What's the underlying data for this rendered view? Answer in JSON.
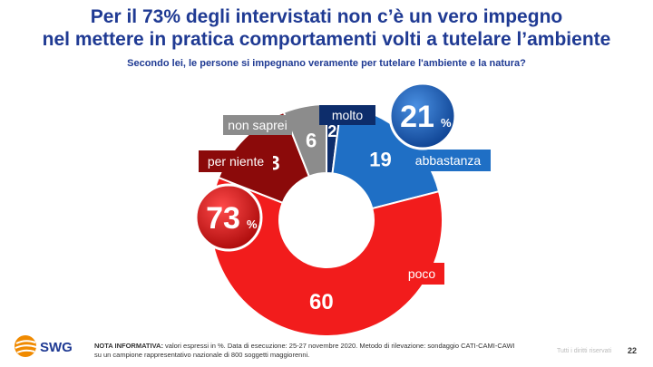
{
  "header": {
    "title_line1": "Per il 73% degli intervistati non c’è un vero impegno",
    "title_line2": "nel mettere in pratica comportamenti volti a tutelare l’ambiente",
    "subtitle": "Secondo lei, le persone si impegnano veramente per tutelare l'ambiente e la natura?"
  },
  "chart_data": {
    "type": "pie",
    "donut": true,
    "slices": [
      {
        "label": "molto",
        "value": 2,
        "color": "#0d2d6b"
      },
      {
        "label": "abbastanza",
        "value": 19,
        "color": "#1f6fc5"
      },
      {
        "label": "poco",
        "value": 60,
        "color": "#f21c1c"
      },
      {
        "label": "per niente",
        "value": 13,
        "color": "#8b0a0a"
      },
      {
        "label": "non saprei",
        "value": 6,
        "color": "#8c8c8c"
      }
    ],
    "summaries": [
      {
        "value": "21",
        "unit": "%",
        "color": "#1a5fb4"
      },
      {
        "value": "73",
        "unit": "%",
        "color": "#d40f0f"
      }
    ]
  },
  "footer": {
    "logo_text": "SWG",
    "note_label": "NOTA INFORMATIVA:",
    "note_text": " valori espressi in %. Data di esecuzione: 25-27 novembre 2020. Metodo di rilevazione: sondaggio CATI-CAMI-CAWI su un campione rappresentativo nazionale di 800 soggetti maggiorenni.",
    "rights": "Tutti i diritti riservati",
    "page_number": "22"
  }
}
